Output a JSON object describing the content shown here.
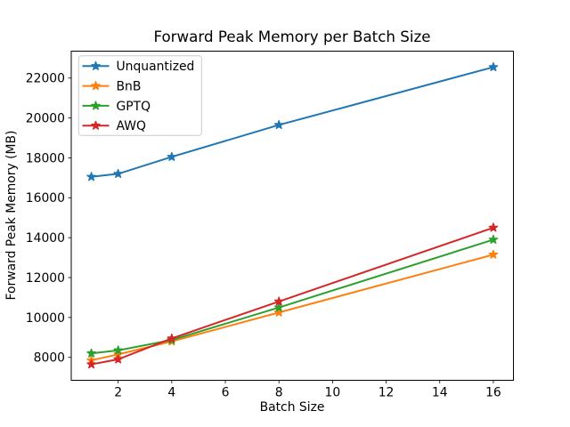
{
  "figure": {
    "background": "#ffffff",
    "text_color": "#000000",
    "spine_color": "#000000",
    "legend_edge_color": "#cccccc",
    "legend_face_color": "#ffffff"
  },
  "chart_data": {
    "type": "line",
    "title": "Forward Peak Memory per Batch Size",
    "xlabel": "Batch Size",
    "ylabel": "Forward Peak Memory (MB)",
    "x": [
      1,
      2,
      4,
      8,
      16
    ],
    "series": [
      {
        "name": "Unquantized",
        "color": "#1f77b4",
        "marker": "star",
        "values": [
          17050,
          17200,
          18050,
          19650,
          22550
        ]
      },
      {
        "name": "BnB",
        "color": "#ff7f0e",
        "marker": "star",
        "values": [
          7850,
          8150,
          8800,
          10250,
          13150
        ]
      },
      {
        "name": "GPTQ",
        "color": "#2ca02c",
        "marker": "star",
        "values": [
          8200,
          8350,
          8870,
          10500,
          13900
        ]
      },
      {
        "name": "AWQ",
        "color": "#d62728",
        "marker": "star",
        "values": [
          7650,
          7900,
          8950,
          10800,
          14500
        ]
      }
    ],
    "xticks": [
      2,
      4,
      6,
      8,
      10,
      12,
      14,
      16
    ],
    "yticks": [
      8000,
      10000,
      12000,
      14000,
      16000,
      18000,
      20000,
      22000
    ],
    "xlim": [
      0.25,
      16.75
    ],
    "ylim": [
      6850,
      23350
    ],
    "grid": false,
    "legend_position": "upper left"
  }
}
